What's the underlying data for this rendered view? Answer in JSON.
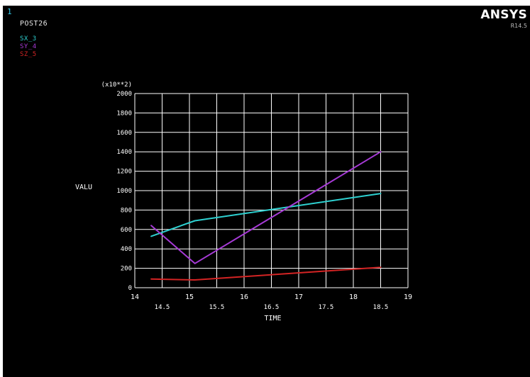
{
  "header": {
    "window_number": "1",
    "plot_name": "POST26",
    "brand": "ANSYS",
    "version": "R14.5"
  },
  "legend": [
    {
      "label": "SX_3",
      "color": "#2ed1d1"
    },
    {
      "label": "SY_4",
      "color": "#a63ad6"
    },
    {
      "label": "SZ_5",
      "color": "#d42424"
    }
  ],
  "chart_data": {
    "type": "line",
    "xlabel": "TIME",
    "ylabel": "VALU",
    "y_multiplier": "(x10**2)",
    "xlim": [
      14,
      19
    ],
    "ylim": [
      0,
      2000
    ],
    "x_ticks_major": [
      "14",
      "15",
      "16",
      "17",
      "18",
      "19"
    ],
    "x_ticks_minor": [
      "14.5",
      "15.5",
      "16.5",
      "17.5",
      "18.5"
    ],
    "y_ticks": [
      "2000",
      "1800",
      "1600",
      "1400",
      "1200",
      "1000",
      "800",
      "600",
      "400",
      "200",
      "0"
    ],
    "grid": true,
    "series": [
      {
        "name": "SX_3",
        "color": "#2ed1d1",
        "x": [
          14.3,
          15.1,
          18.5
        ],
        "y": [
          530,
          690,
          970
        ]
      },
      {
        "name": "SY_4",
        "color": "#a63ad6",
        "x": [
          14.3,
          15.1,
          18.5
        ],
        "y": [
          640,
          250,
          1400
        ]
      },
      {
        "name": "SZ_5",
        "color": "#d42424",
        "x": [
          14.3,
          15.1,
          18.5
        ],
        "y": [
          90,
          80,
          210
        ]
      }
    ]
  }
}
